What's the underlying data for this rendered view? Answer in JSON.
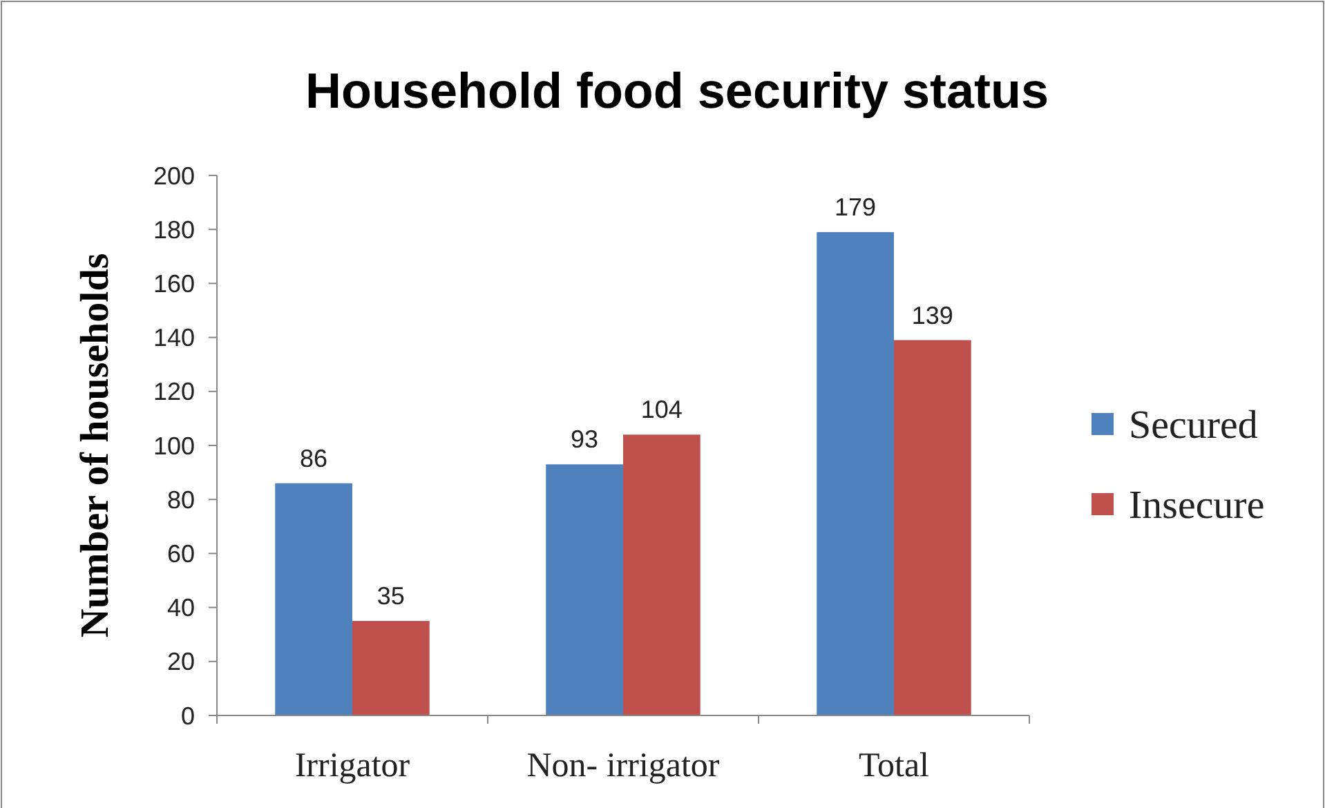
{
  "chart_data": {
    "type": "bar",
    "title": "Household food security status",
    "ylabel": "Number of households",
    "categories": [
      "Irrigator",
      "Non- irrigator",
      "Total"
    ],
    "series": [
      {
        "name": "Secured",
        "color": "#4f81bd",
        "values": [
          86,
          93,
          179
        ]
      },
      {
        "name": "Insecure",
        "color": "#c0504d",
        "values": [
          35,
          104,
          139
        ]
      }
    ],
    "ylim": [
      0,
      200
    ],
    "yticks": [
      0,
      20,
      40,
      60,
      80,
      100,
      120,
      140,
      160,
      180,
      200
    ],
    "data_labels": true,
    "legend": "right",
    "grid": false
  }
}
